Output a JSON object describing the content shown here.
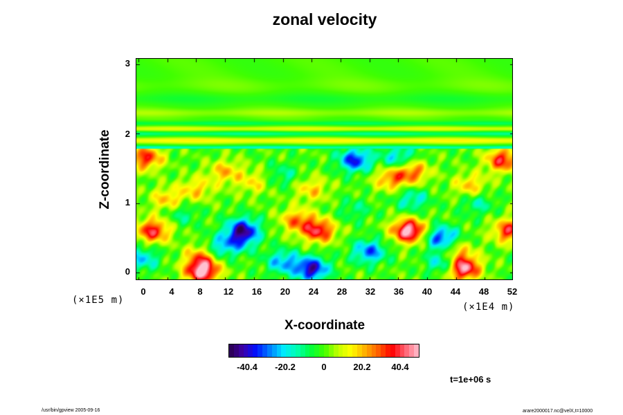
{
  "chart_data": {
    "type": "heatmap",
    "title": "zonal velocity",
    "xlabel": "X-coordinate",
    "ylabel": "Z-coordinate",
    "xlim": [
      -0.3,
      52
    ],
    "ylim": [
      -0.12,
      3.08
    ],
    "x_ticks": [
      "0",
      "4",
      "8",
      "12",
      "16",
      "20",
      "24",
      "28",
      "32",
      "36",
      "40",
      "44",
      "48",
      "52"
    ],
    "y_ticks": [
      "0",
      "1",
      "2",
      "3"
    ],
    "x_scale_note": "(×1E4 m)",
    "y_scale_note": "(×1E5 m)",
    "colorbar": {
      "ticks": [
        "-40.4",
        "-20.2",
        "0",
        "20.2",
        "40.4"
      ],
      "range": [
        -50,
        50
      ],
      "colors": [
        "#2a004a",
        "#3d00a8",
        "#0010ff",
        "#0080ff",
        "#00e8ff",
        "#00ffb0",
        "#00ff40",
        "#40ff00",
        "#c0ff00",
        "#ffff00",
        "#ffb000",
        "#ff6000",
        "#ff0000",
        "#ff6070",
        "#ffc0d0"
      ]
    },
    "time_label": "t=1e+06 s",
    "features": [
      {
        "x": 8.8,
        "z": 0.02,
        "v": 52
      },
      {
        "x": 8.8,
        "z": 0.25,
        "v": 24
      },
      {
        "x": 24.0,
        "z": 0.05,
        "v": -42
      },
      {
        "x": 20.0,
        "z": 0.15,
        "v": -25
      },
      {
        "x": 14.5,
        "z": 0.62,
        "v": -38
      },
      {
        "x": 11.0,
        "z": 0.35,
        "v": -22
      },
      {
        "x": 14.0,
        "z": 0.45,
        "v": -20
      },
      {
        "x": 25.0,
        "z": 0.6,
        "v": 38
      },
      {
        "x": 22.0,
        "z": 0.75,
        "v": 26
      },
      {
        "x": 37.5,
        "z": 0.6,
        "v": 52
      },
      {
        "x": 32.0,
        "z": 0.3,
        "v": -30
      },
      {
        "x": 42.0,
        "z": 0.5,
        "v": -34
      },
      {
        "x": 42.5,
        "z": 0.15,
        "v": -28
      },
      {
        "x": 45.0,
        "z": 0.06,
        "v": 50
      },
      {
        "x": 44.0,
        "z": 0.28,
        "v": 22
      },
      {
        "x": 2.0,
        "z": 0.6,
        "v": 38
      },
      {
        "x": 51.5,
        "z": 0.6,
        "v": 36
      },
      {
        "x": 0.5,
        "z": 0.2,
        "v": -22
      },
      {
        "x": 4.0,
        "z": 1.05,
        "v": 20
      },
      {
        "x": 8.0,
        "z": 1.2,
        "v": 18
      },
      {
        "x": 12.0,
        "z": 1.45,
        "v": 20
      },
      {
        "x": 16.0,
        "z": 1.3,
        "v": 15
      },
      {
        "x": 24.0,
        "z": 1.2,
        "v": 18
      },
      {
        "x": 35.0,
        "z": 1.35,
        "v": 25
      },
      {
        "x": 38.0,
        "z": 1.45,
        "v": 28
      },
      {
        "x": 46.0,
        "z": 1.25,
        "v": 20
      },
      {
        "x": 1.0,
        "z": 1.65,
        "v": 34
      },
      {
        "x": 50.5,
        "z": 1.62,
        "v": 36
      },
      {
        "x": 30.0,
        "z": 1.62,
        "v": -36
      },
      {
        "x": 36.0,
        "z": 1.65,
        "v": -22
      },
      {
        "x": 20.0,
        "z": 1.4,
        "v": -12
      },
      {
        "x": 38.0,
        "z": 1.05,
        "v": -18
      },
      {
        "x": 47.0,
        "z": 1.0,
        "v": -14
      },
      {
        "x": 30.0,
        "z": 0.9,
        "v": -10
      },
      {
        "x": 6.0,
        "z": 0.85,
        "v": -12
      }
    ]
  },
  "footer": {
    "left": "/usr/bin/gpview 2005-09-16",
    "right": "arare2000017.nc@velX,t=10000"
  }
}
